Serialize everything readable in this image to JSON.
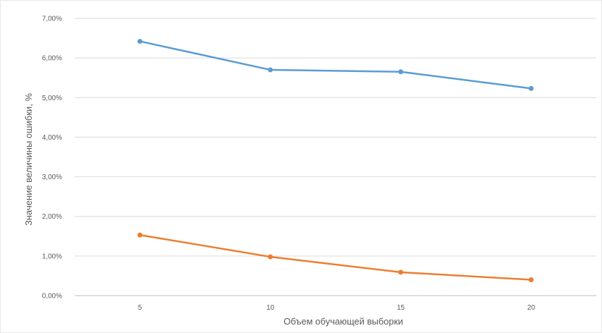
{
  "chart_data": {
    "type": "line",
    "title": "",
    "xlabel": "Объем обучающей выборки",
    "ylabel": "Значение величины ошибки, %",
    "x": [
      5,
      10,
      15,
      20
    ],
    "x_tick_labels": [
      "5",
      "10",
      "15",
      "20"
    ],
    "ylim": [
      0,
      7
    ],
    "y_ticks": [
      0,
      1,
      2,
      3,
      4,
      5,
      6,
      7
    ],
    "y_tick_labels": [
      "0,00%",
      "1,00%",
      "2,00%",
      "3,00%",
      "4,00%",
      "5,00%",
      "6,00%",
      "7,00%"
    ],
    "grid": "horizontal",
    "legend": "none",
    "series": [
      {
        "color": "#5b9bd5",
        "values": [
          6.42,
          5.7,
          5.65,
          5.23
        ]
      },
      {
        "color": "#ed7d31",
        "values": [
          1.53,
          0.98,
          0.59,
          0.4
        ]
      }
    ]
  }
}
